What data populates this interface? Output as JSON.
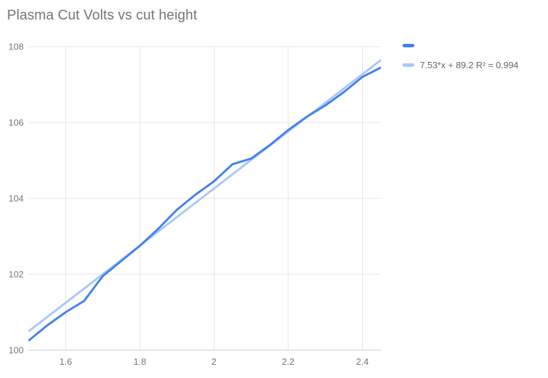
{
  "chart": {
    "title": "Plasma Cut Volts vs cut height",
    "legend": {
      "series_label": "",
      "trendline_label": "7.53*x + 89.2 R² = 0.994"
    },
    "colors": {
      "series": "#4280f0",
      "trendline": "#aac7f8",
      "title_text": "#757575",
      "axis_text": "#757575",
      "gridline": "#e4e4e4",
      "axis_line": "#c9c9c9",
      "background": "#ffffff"
    }
  },
  "chart_data": {
    "type": "line",
    "title": "Plasma Cut Volts vs cut height",
    "xlabel": "",
    "ylabel": "",
    "xlim": [
      1.5,
      2.45
    ],
    "ylim": [
      100,
      108
    ],
    "xticks": [
      1.6,
      1.8,
      2,
      2.2,
      2.4
    ],
    "xtick_labels": [
      "1.6",
      "1.8",
      "2",
      "2.2",
      "2.4"
    ],
    "yticks": [
      100,
      102,
      104,
      106,
      108
    ],
    "ytick_labels": [
      "100",
      "102",
      "104",
      "106",
      "108"
    ],
    "grid": true,
    "legend_position": "top-right",
    "series": [
      {
        "name": "",
        "kind": "data",
        "color": "#4280f0",
        "x": [
          1.5,
          1.55,
          1.6,
          1.65,
          1.7,
          1.75,
          1.8,
          1.85,
          1.9,
          1.95,
          2.0,
          2.05,
          2.1,
          2.15,
          2.2,
          2.25,
          2.3,
          2.35,
          2.4,
          2.45
        ],
        "y": [
          100.25,
          100.65,
          101.0,
          101.3,
          101.95,
          102.35,
          102.75,
          103.2,
          103.7,
          104.1,
          104.45,
          104.9,
          105.05,
          105.4,
          105.8,
          106.15,
          106.45,
          106.8,
          107.2,
          107.45
        ]
      },
      {
        "name": "7.53*x + 89.2 R² = 0.994",
        "kind": "trendline",
        "color": "#aac7f8",
        "equation": {
          "slope": 7.53,
          "intercept": 89.2,
          "r_squared": 0.994
        },
        "x": [
          1.5,
          2.45
        ],
        "y": [
          100.495,
          107.6485
        ]
      }
    ]
  }
}
